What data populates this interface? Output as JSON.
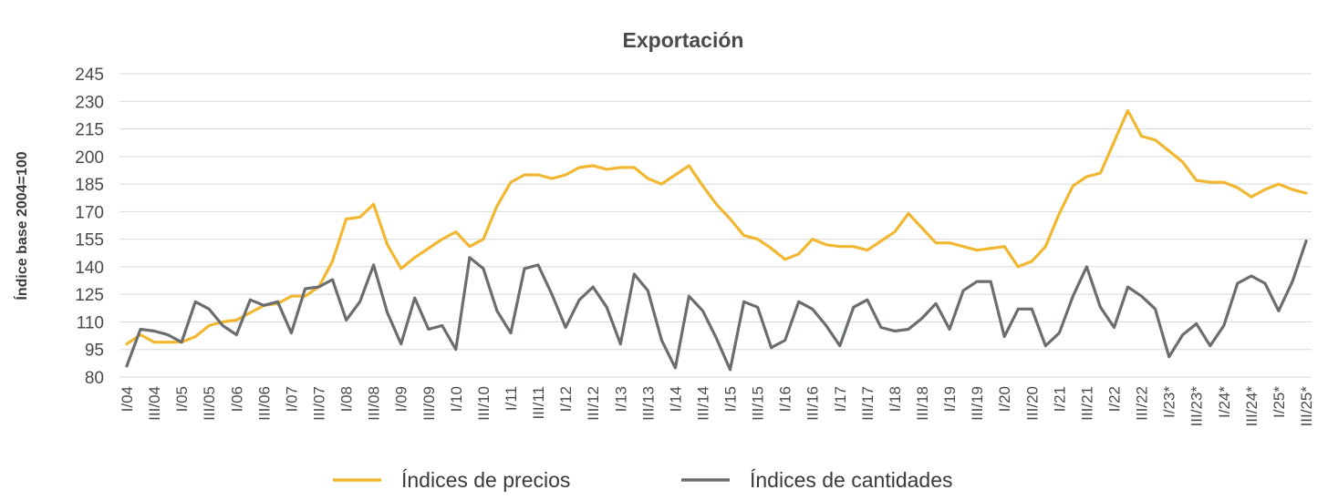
{
  "chart_data": {
    "type": "line",
    "title": "Exportación",
    "xlabel": "",
    "ylabel": "Índice base 2004=100",
    "ylim": [
      80,
      245
    ],
    "yticks": [
      80,
      95,
      110,
      125,
      140,
      155,
      170,
      185,
      200,
      215,
      230,
      245
    ],
    "grid": true,
    "legend_position": "bottom",
    "x_tick_labels": [
      "I/04",
      "III/04",
      "I/05",
      "III/05",
      "I/06",
      "III/06",
      "I/07",
      "III/07",
      "I/08",
      "III/08",
      "I/09",
      "III/09",
      "I/10",
      "III/10",
      "I/11",
      "III/11",
      "I/12",
      "III/12",
      "I/13",
      "III/13",
      "I/14",
      "III/14",
      "I/15",
      "III/15",
      "I/16",
      "III/16",
      "I/17",
      "III/17",
      "I/18",
      "III/18",
      "I/19",
      "III/19",
      "I/20",
      "III/20",
      "I/21",
      "III/21",
      "I/22",
      "III/22",
      "I/23*",
      "III/23*",
      "I/24*",
      "III/24*",
      "I/25*",
      "III/25*"
    ],
    "series": [
      {
        "name": "Índices de precios",
        "color": "#f2b731",
        "values": [
          98,
          103,
          99,
          99,
          99,
          102,
          108,
          110,
          111,
          115,
          119,
          120,
          124,
          124,
          129,
          143,
          166,
          167,
          174,
          152,
          139,
          145,
          150,
          155,
          159,
          151,
          155,
          173,
          186,
          190,
          190,
          188,
          190,
          194,
          195,
          193,
          194,
          194,
          188,
          185,
          190,
          195,
          184,
          174,
          166,
          157,
          155,
          150,
          144,
          147,
          155,
          152,
          151,
          151,
          149,
          154,
          159,
          169,
          161,
          153,
          153,
          151,
          149,
          150,
          151,
          140,
          143,
          151,
          169,
          184,
          189,
          191,
          208,
          225,
          211,
          209,
          203,
          197,
          187,
          186,
          186,
          183,
          178,
          182,
          185,
          182,
          180
        ]
      },
      {
        "name": "Índices de cantidades",
        "color": "#6b6e70",
        "values": [
          86,
          106,
          105,
          103,
          99,
          121,
          117,
          108,
          103,
          122,
          119,
          121,
          104,
          128,
          129,
          133,
          111,
          121,
          141,
          115,
          98,
          123,
          106,
          108,
          95,
          145,
          139,
          116,
          104,
          139,
          141,
          125,
          107,
          122,
          129,
          118,
          98,
          136,
          127,
          100,
          85,
          124,
          116,
          101,
          84,
          121,
          118,
          96,
          100,
          121,
          117,
          108,
          97,
          118,
          122,
          107,
          105,
          106,
          112,
          120,
          106,
          127,
          132,
          132,
          102,
          117,
          117,
          97,
          104,
          124,
          140,
          118,
          107,
          129,
          124,
          117,
          91,
          103,
          109,
          97,
          108,
          131,
          135,
          131,
          116,
          132,
          154
        ]
      }
    ]
  }
}
